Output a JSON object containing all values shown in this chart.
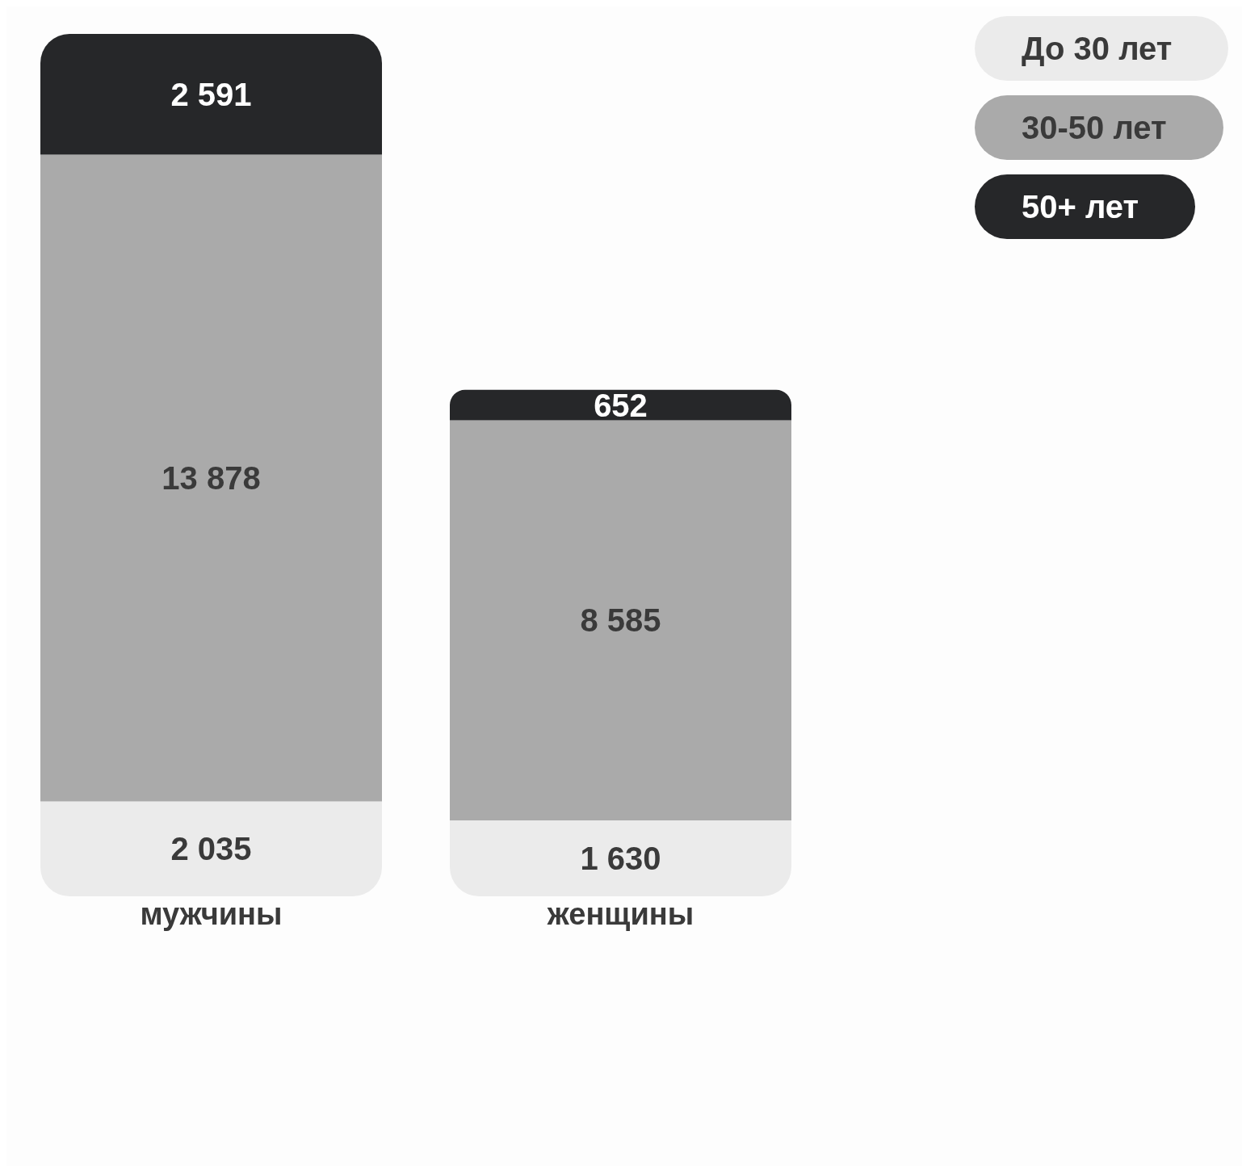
{
  "chart_data": {
    "type": "bar",
    "categories": [
      "мужчины",
      "женщины"
    ],
    "stacked": true,
    "data_labels": true,
    "legend": "top right",
    "series": [
      {
        "name": "До 30 лет",
        "color": "#ebebeb",
        "values": [
          2035,
          1630
        ]
      },
      {
        "name": "30-50 лет",
        "color": "#aaaaaa",
        "values": [
          13878,
          8585
        ]
      },
      {
        "name": "50+ лет",
        "color": "#262729",
        "values": [
          2591,
          652
        ]
      }
    ]
  }
}
